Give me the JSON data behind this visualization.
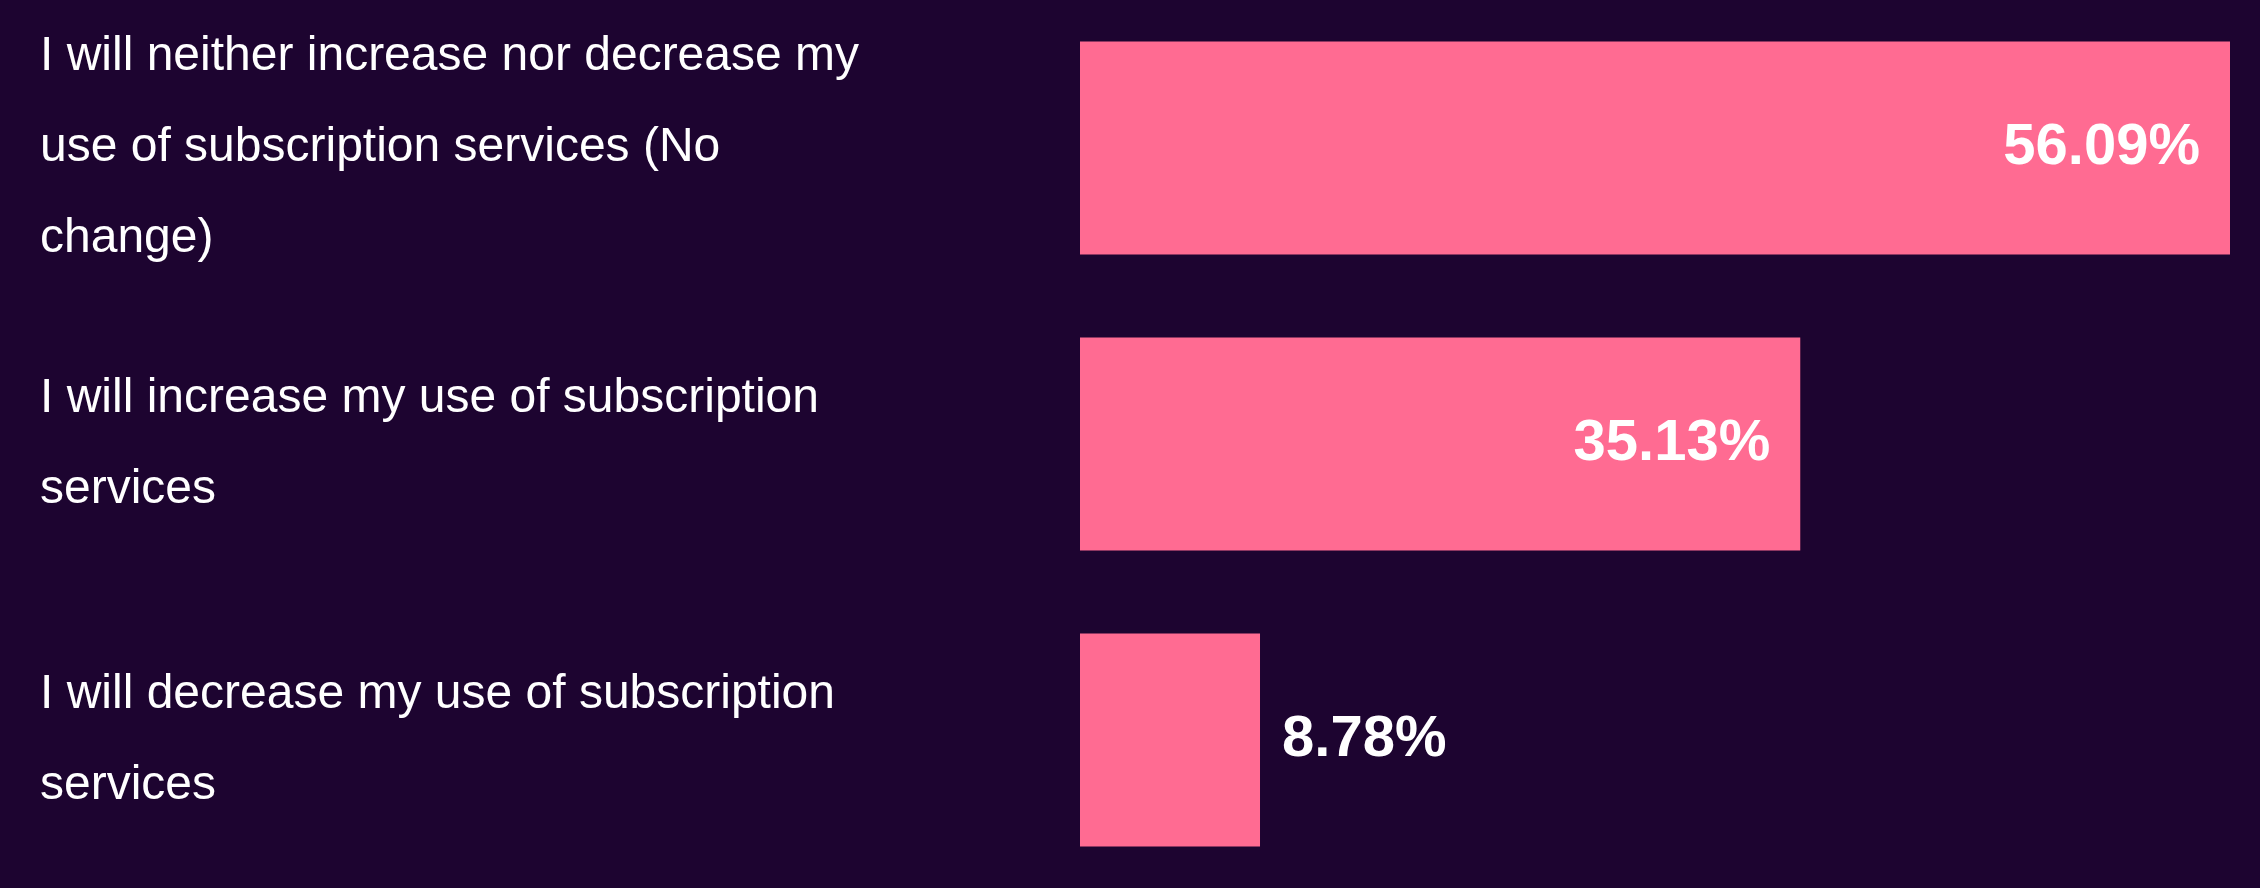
{
  "chart_data": {
    "type": "bar",
    "orientation": "horizontal",
    "categories": [
      "I will neither increase nor decrease my use of subscription services (No change)",
      "I will increase my use of subscription services",
      "I will decrease my use of subscription services"
    ],
    "values": [
      56.09,
      35.13,
      8.78
    ],
    "value_labels": [
      "56.09%",
      "35.13%",
      "8.78%"
    ],
    "color": "#ff6b92",
    "tick_labels": "y"
  }
}
